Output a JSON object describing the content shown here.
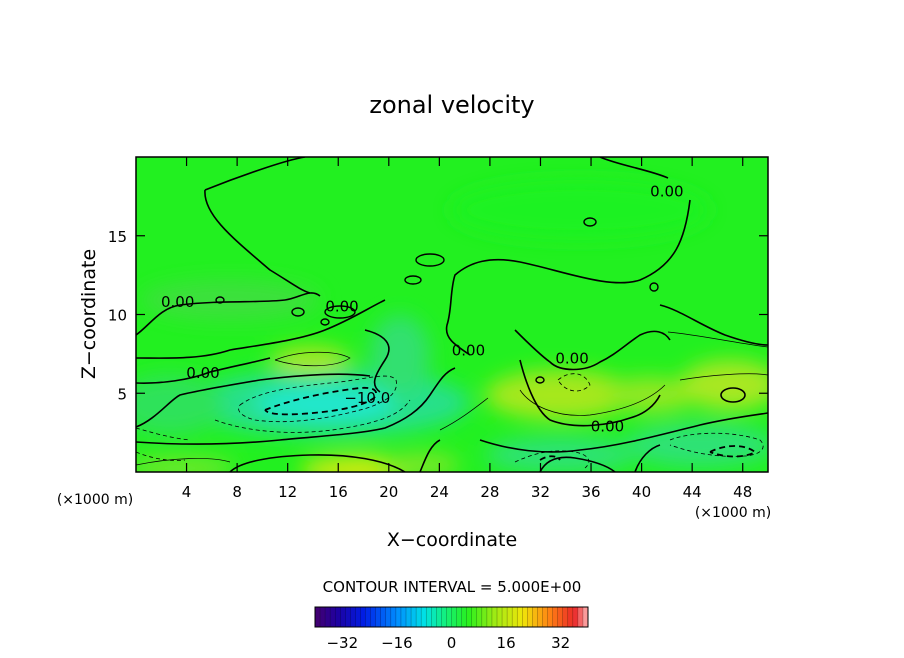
{
  "chart_data": {
    "type": "contour",
    "title": "zonal velocity",
    "xlabel": "X−coordinate",
    "ylabel": "Z−coordinate",
    "x_unit_left": "(×1000 m)",
    "x_unit_right": "(×1000 m)",
    "xlim": [
      0,
      50
    ],
    "ylim": [
      0,
      20
    ],
    "x_ticks": [
      4,
      8,
      12,
      16,
      20,
      24,
      28,
      32,
      36,
      40,
      44,
      48
    ],
    "y_ticks": [
      5,
      10,
      15
    ],
    "grid": false,
    "contour_interval_text": "CONTOUR INTERVAL = 5.000E+00",
    "contour_labels": [
      {
        "text": "0.00",
        "x": 42.0,
        "y": 17.8
      },
      {
        "text": "0.00",
        "x": 3.3,
        "y": 10.8
      },
      {
        "text": "0.00",
        "x": 5.3,
        "y": 6.3
      },
      {
        "text": "0.00",
        "x": 16.3,
        "y": 10.5
      },
      {
        "text": "0.00",
        "x": 26.3,
        "y": 7.7
      },
      {
        "text": "0.00",
        "x": 34.5,
        "y": 7.2
      },
      {
        "text": "0.00",
        "x": 37.3,
        "y": 2.9
      },
      {
        "text": "−10.0",
        "x": 18.3,
        "y": 4.7
      }
    ],
    "colorbar": {
      "min": -40,
      "max": 40,
      "ticks": [
        "−32",
        "−16",
        "0",
        "16",
        "32"
      ],
      "tick_values": [
        -32,
        -16,
        0,
        16,
        32
      ]
    }
  }
}
